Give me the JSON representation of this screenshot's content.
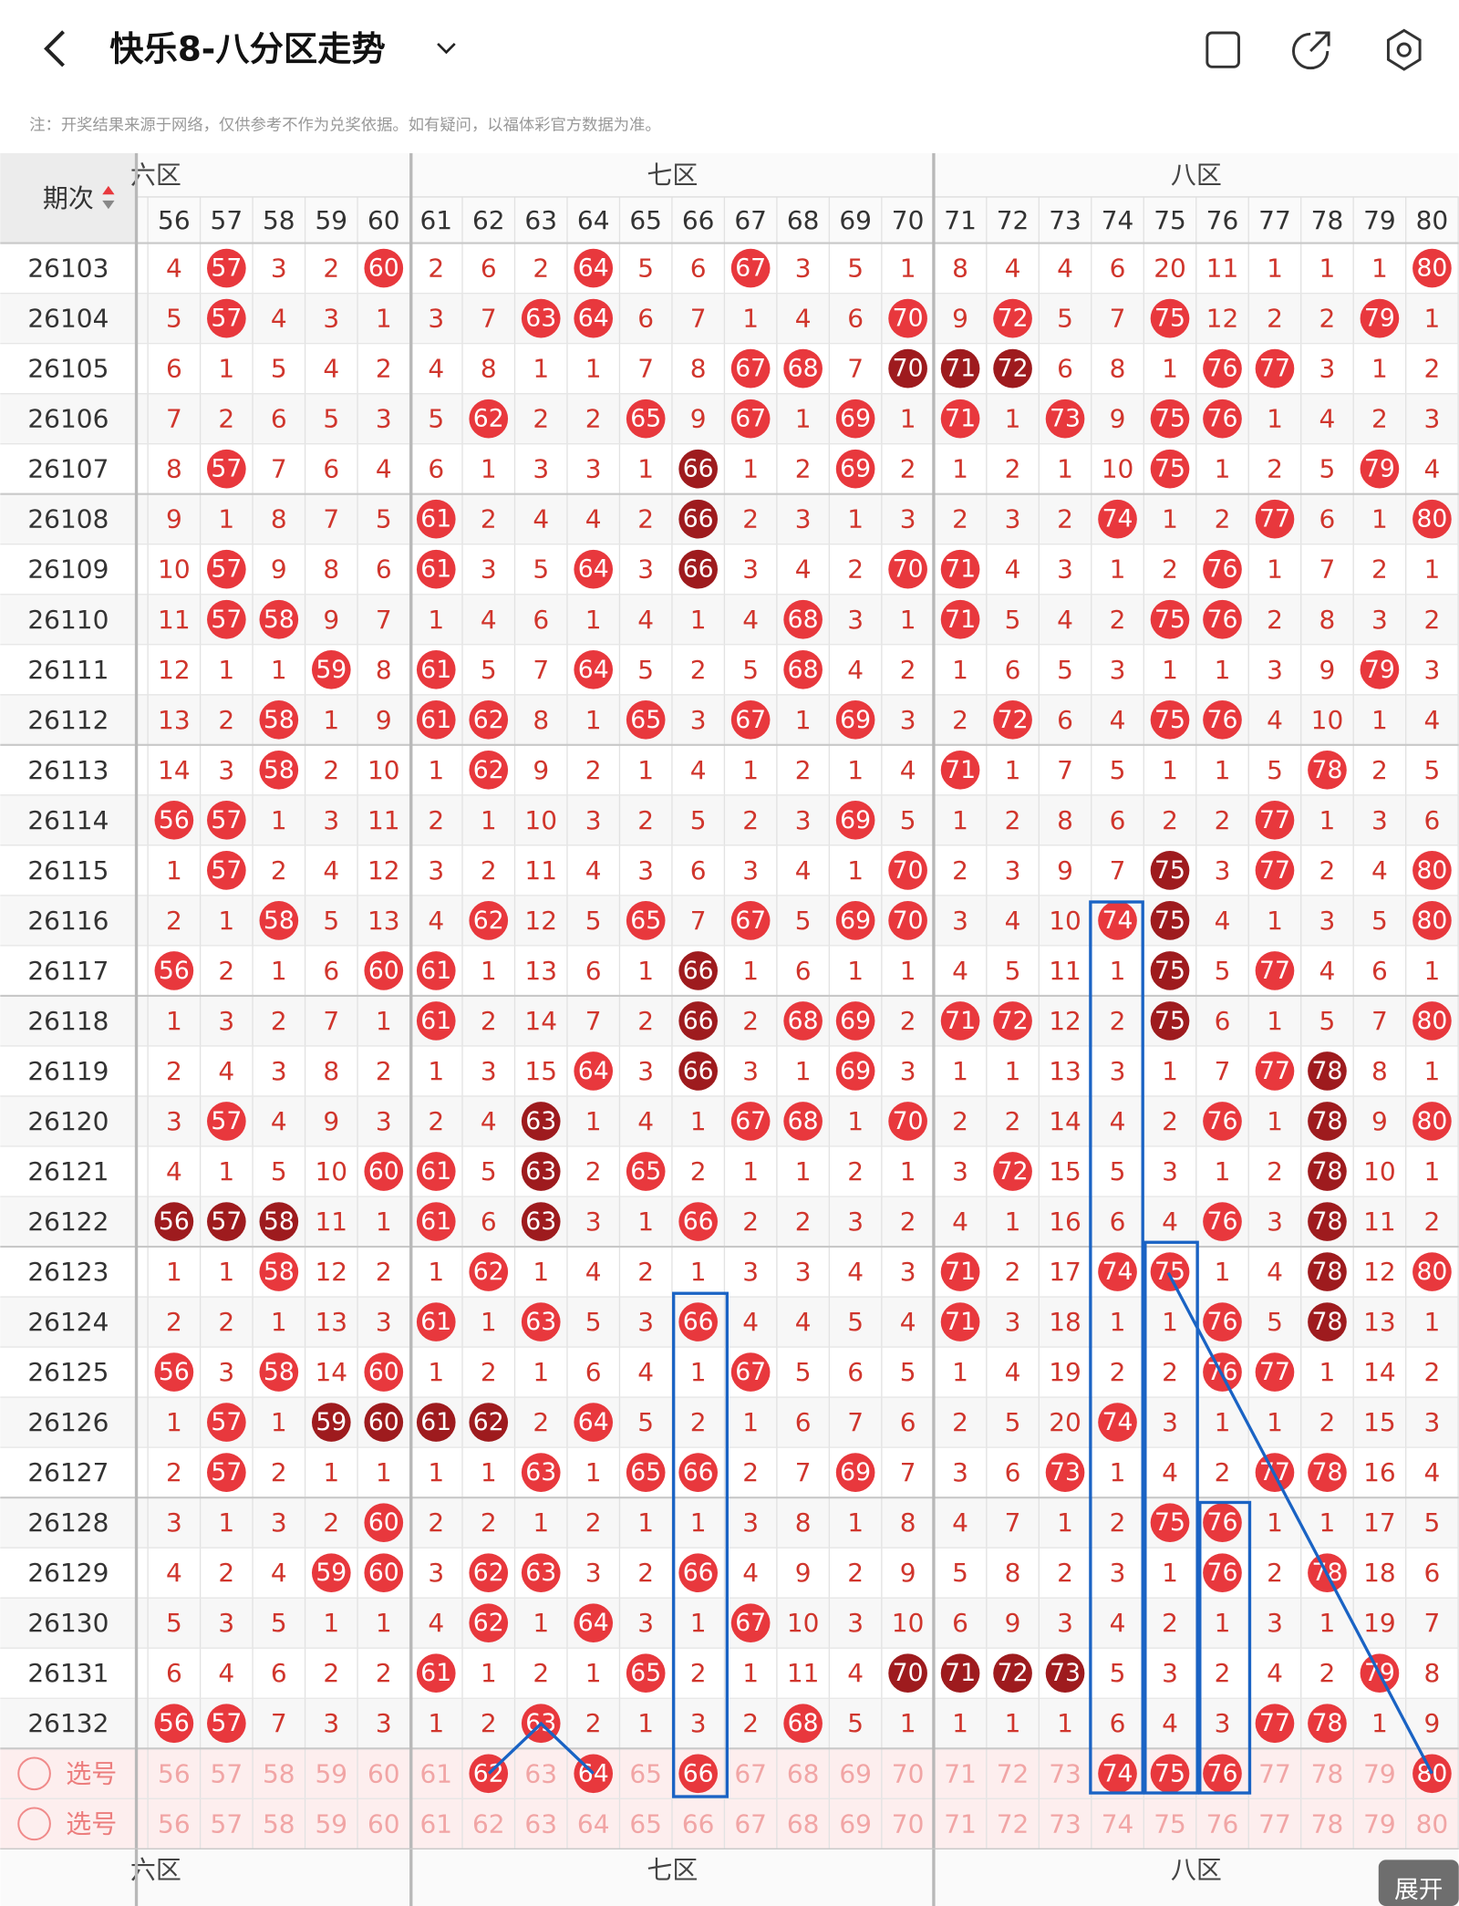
{
  "header": {
    "title": "快乐8-八分区走势",
    "note": "注：开奖结果来源于网络，仅供参考不作为兑奖依据。如有疑问，以福体彩官方数据为准。"
  },
  "table": {
    "period_label": "期次",
    "zones": [
      {
        "label": "六区"
      },
      {
        "label": "七区"
      },
      {
        "label": "八区"
      }
    ],
    "columns": [
      56,
      57,
      58,
      59,
      60,
      61,
      62,
      63,
      64,
      65,
      66,
      67,
      68,
      69,
      70,
      71,
      72,
      73,
      74,
      75,
      76,
      77,
      78,
      79,
      80
    ],
    "rows": [
      {
        "period": "26103",
        "cells": [
          4,
          57,
          3,
          2,
          60,
          2,
          6,
          2,
          64,
          5,
          6,
          67,
          3,
          5,
          1,
          8,
          4,
          4,
          6,
          20,
          11,
          1,
          1,
          1,
          80
        ]
      },
      {
        "period": "26104",
        "cells": [
          5,
          57,
          4,
          3,
          1,
          3,
          7,
          63,
          64,
          6,
          7,
          1,
          4,
          6,
          70,
          9,
          72,
          5,
          7,
          75,
          12,
          2,
          2,
          79,
          1
        ]
      },
      {
        "period": "26105",
        "cells": [
          6,
          1,
          5,
          4,
          2,
          4,
          8,
          1,
          1,
          7,
          8,
          67,
          68,
          7,
          70,
          71,
          72,
          6,
          8,
          1,
          76,
          77,
          3,
          1,
          2
        ],
        "dark": [
          70,
          71,
          72
        ]
      },
      {
        "period": "26106",
        "cells": [
          7,
          2,
          6,
          5,
          3,
          5,
          62,
          2,
          2,
          65,
          9,
          67,
          1,
          69,
          1,
          71,
          1,
          73,
          9,
          75,
          76,
          1,
          4,
          2,
          3
        ]
      },
      {
        "period": "26107",
        "cells": [
          8,
          57,
          7,
          6,
          4,
          6,
          1,
          3,
          3,
          1,
          66,
          1,
          2,
          69,
          2,
          1,
          2,
          1,
          10,
          75,
          1,
          2,
          5,
          79,
          4
        ],
        "dark": [
          66
        ]
      },
      {
        "period": "26108",
        "cells": [
          9,
          1,
          8,
          7,
          5,
          61,
          2,
          4,
          4,
          2,
          66,
          2,
          3,
          1,
          3,
          2,
          3,
          2,
          74,
          1,
          2,
          77,
          6,
          1,
          80
        ],
        "dark": [
          66
        ]
      },
      {
        "period": "26109",
        "cells": [
          10,
          57,
          9,
          8,
          6,
          61,
          3,
          5,
          64,
          3,
          66,
          3,
          4,
          2,
          70,
          71,
          4,
          3,
          1,
          2,
          76,
          1,
          7,
          2,
          1
        ],
        "dark": [
          66
        ]
      },
      {
        "period": "26110",
        "cells": [
          11,
          57,
          58,
          9,
          7,
          1,
          4,
          6,
          1,
          4,
          1,
          4,
          68,
          3,
          1,
          71,
          5,
          4,
          2,
          75,
          76,
          2,
          8,
          3,
          2
        ]
      },
      {
        "period": "26111",
        "cells": [
          12,
          1,
          1,
          59,
          8,
          61,
          5,
          7,
          64,
          5,
          2,
          5,
          68,
          4,
          2,
          1,
          6,
          5,
          3,
          1,
          1,
          3,
          9,
          79,
          3
        ]
      },
      {
        "period": "26112",
        "cells": [
          13,
          2,
          58,
          1,
          9,
          61,
          62,
          8,
          1,
          65,
          3,
          67,
          1,
          69,
          3,
          2,
          72,
          6,
          4,
          75,
          76,
          4,
          10,
          1,
          4
        ]
      },
      {
        "period": "26113",
        "cells": [
          14,
          3,
          58,
          2,
          10,
          1,
          62,
          9,
          2,
          1,
          4,
          1,
          2,
          1,
          4,
          71,
          1,
          7,
          5,
          1,
          1,
          5,
          78,
          2,
          5
        ]
      },
      {
        "period": "26114",
        "cells": [
          56,
          57,
          1,
          3,
          11,
          2,
          1,
          10,
          3,
          2,
          5,
          2,
          3,
          69,
          5,
          1,
          2,
          8,
          6,
          2,
          2,
          77,
          1,
          3,
          6
        ]
      },
      {
        "period": "26115",
        "cells": [
          1,
          57,
          2,
          4,
          12,
          3,
          2,
          11,
          4,
          3,
          6,
          3,
          4,
          1,
          70,
          2,
          3,
          9,
          7,
          75,
          3,
          77,
          2,
          4,
          80
        ],
        "dark": [
          75
        ]
      },
      {
        "period": "26116",
        "cells": [
          2,
          1,
          58,
          5,
          13,
          4,
          62,
          12,
          5,
          65,
          7,
          67,
          5,
          69,
          70,
          3,
          4,
          10,
          74,
          75,
          4,
          1,
          3,
          5,
          80
        ],
        "dark": [
          75
        ]
      },
      {
        "period": "26117",
        "cells": [
          56,
          2,
          1,
          6,
          60,
          61,
          1,
          13,
          6,
          1,
          66,
          1,
          6,
          1,
          1,
          4,
          5,
          11,
          1,
          75,
          5,
          77,
          4,
          6,
          1
        ],
        "dark": [
          66,
          75
        ]
      },
      {
        "period": "26118",
        "cells": [
          1,
          3,
          2,
          7,
          1,
          61,
          2,
          14,
          7,
          2,
          66,
          2,
          68,
          69,
          2,
          71,
          72,
          12,
          2,
          75,
          6,
          1,
          5,
          7,
          80
        ],
        "dark": [
          66,
          75
        ]
      },
      {
        "period": "26119",
        "cells": [
          2,
          4,
          3,
          8,
          2,
          1,
          3,
          15,
          64,
          3,
          66,
          3,
          1,
          69,
          3,
          1,
          1,
          13,
          3,
          1,
          7,
          77,
          78,
          8,
          1
        ],
        "dark": [
          66,
          78
        ]
      },
      {
        "period": "26120",
        "cells": [
          3,
          57,
          4,
          9,
          3,
          2,
          4,
          63,
          1,
          4,
          1,
          67,
          68,
          1,
          70,
          2,
          2,
          14,
          4,
          2,
          76,
          1,
          78,
          9,
          80
        ],
        "dark": [
          63,
          78
        ]
      },
      {
        "period": "26121",
        "cells": [
          4,
          1,
          5,
          10,
          60,
          61,
          5,
          63,
          2,
          65,
          2,
          1,
          1,
          2,
          1,
          3,
          72,
          15,
          5,
          3,
          1,
          2,
          78,
          10,
          1
        ],
        "dark": [
          63,
          78
        ]
      },
      {
        "period": "26122",
        "cells": [
          56,
          57,
          58,
          11,
          1,
          61,
          6,
          63,
          3,
          1,
          66,
          2,
          2,
          3,
          2,
          4,
          1,
          16,
          6,
          4,
          76,
          3,
          78,
          11,
          2
        ],
        "dark": [
          56,
          57,
          58,
          63,
          78
        ]
      },
      {
        "period": "26123",
        "cells": [
          1,
          1,
          58,
          12,
          2,
          1,
          62,
          1,
          4,
          2,
          1,
          3,
          3,
          4,
          3,
          71,
          2,
          17,
          74,
          75,
          1,
          4,
          78,
          12,
          80
        ],
        "dark": [
          78
        ]
      },
      {
        "period": "26124",
        "cells": [
          2,
          2,
          1,
          13,
          3,
          61,
          1,
          63,
          5,
          3,
          66,
          4,
          4,
          5,
          4,
          71,
          3,
          18,
          1,
          1,
          76,
          5,
          78,
          13,
          1
        ],
        "dark": [
          78
        ]
      },
      {
        "period": "26125",
        "cells": [
          56,
          3,
          58,
          14,
          60,
          1,
          2,
          1,
          6,
          4,
          1,
          67,
          5,
          6,
          5,
          1,
          4,
          19,
          2,
          2,
          76,
          77,
          1,
          14,
          2
        ]
      },
      {
        "period": "26126",
        "cells": [
          1,
          57,
          1,
          59,
          60,
          61,
          62,
          2,
          64,
          5,
          2,
          1,
          6,
          7,
          6,
          2,
          5,
          20,
          74,
          3,
          1,
          1,
          2,
          15,
          3
        ],
        "dark": [
          59,
          60,
          61,
          62
        ]
      },
      {
        "period": "26127",
        "cells": [
          2,
          57,
          2,
          1,
          1,
          1,
          1,
          63,
          1,
          65,
          66,
          2,
          7,
          69,
          7,
          3,
          6,
          73,
          1,
          4,
          2,
          77,
          78,
          16,
          4
        ]
      },
      {
        "period": "26128",
        "cells": [
          3,
          1,
          3,
          2,
          60,
          2,
          2,
          1,
          2,
          1,
          1,
          3,
          8,
          1,
          8,
          4,
          7,
          1,
          2,
          75,
          76,
          1,
          1,
          17,
          5
        ]
      },
      {
        "period": "26129",
        "cells": [
          4,
          2,
          4,
          59,
          60,
          3,
          62,
          63,
          3,
          2,
          66,
          4,
          9,
          2,
          9,
          5,
          8,
          2,
          3,
          1,
          76,
          2,
          78,
          18,
          6
        ]
      },
      {
        "period": "26130",
        "cells": [
          5,
          3,
          5,
          1,
          1,
          4,
          62,
          1,
          64,
          3,
          1,
          67,
          10,
          3,
          10,
          6,
          9,
          3,
          4,
          2,
          1,
          3,
          1,
          19,
          7
        ]
      },
      {
        "period": "26131",
        "cells": [
          6,
          4,
          6,
          2,
          2,
          61,
          1,
          2,
          1,
          65,
          2,
          1,
          11,
          4,
          70,
          71,
          72,
          73,
          5,
          3,
          2,
          4,
          2,
          79,
          8
        ],
        "dark": [
          70,
          71,
          72,
          73
        ]
      },
      {
        "period": "26132",
        "cells": [
          56,
          57,
          7,
          3,
          3,
          1,
          2,
          63,
          2,
          1,
          3,
          2,
          68,
          5,
          1,
          1,
          1,
          1,
          6,
          4,
          3,
          77,
          78,
          1,
          9
        ]
      }
    ],
    "select_rows": [
      {
        "label": "选号",
        "selected": [
          62,
          64,
          66,
          74,
          75,
          76,
          80
        ]
      },
      {
        "label": "选号"
      }
    ]
  },
  "expand": "展开"
}
